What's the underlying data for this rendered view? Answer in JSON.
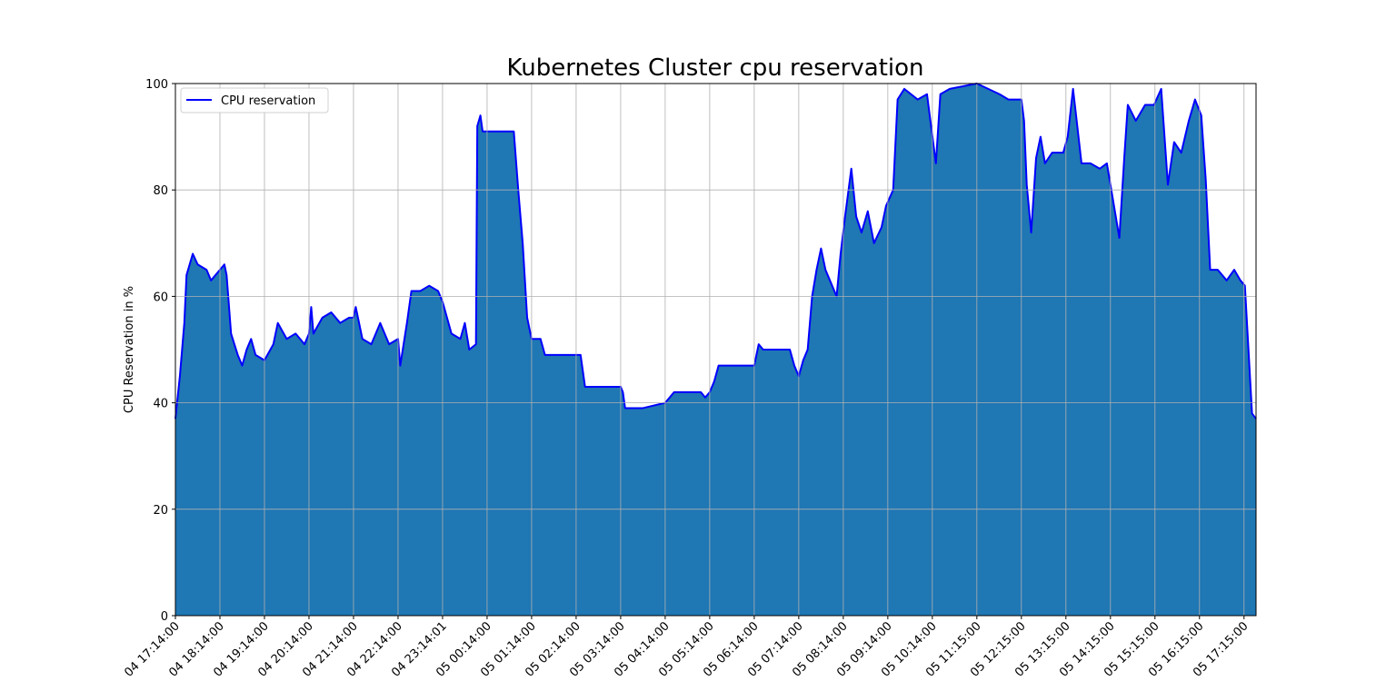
{
  "chart_data": {
    "type": "area",
    "title": "Kubernetes Cluster cpu reservation",
    "ylabel": "CPU Reservation in %",
    "x": [
      0,
      0.1,
      0.2,
      0.25,
      0.39,
      0.5,
      0.7,
      0.8,
      1.0,
      1.1,
      1.15,
      1.25,
      1.4,
      1.5,
      1.6,
      1.7,
      1.8,
      2.0,
      2.2,
      2.3,
      2.5,
      2.7,
      2.9,
      3.0,
      3.05,
      3.1,
      3.3,
      3.5,
      3.7,
      3.9,
      4.0,
      4.05,
      4.2,
      4.4,
      4.6,
      4.8,
      5.0,
      5.05,
      5.2,
      5.3,
      5.5,
      5.7,
      5.9,
      6.0,
      6.2,
      6.4,
      6.5,
      6.6,
      6.75,
      6.78,
      6.85,
      6.9,
      7.0,
      7.6,
      7.7,
      7.8,
      7.9,
      8.0,
      8.2,
      8.3,
      9.1,
      9.15,
      9.2,
      10.0,
      10.05,
      10.1,
      10.5,
      11.0,
      11.2,
      11.8,
      11.9,
      12.0,
      12.1,
      12.2,
      13.0,
      13.05,
      13.1,
      13.2,
      13.8,
      13.9,
      14.0,
      14.1,
      14.2,
      14.25,
      14.3,
      14.4,
      14.5,
      14.6,
      14.7,
      14.85,
      14.94,
      15.04,
      15.18,
      15.29,
      15.41,
      15.55,
      15.69,
      15.86,
      15.96,
      16.12,
      16.22,
      16.37,
      16.67,
      16.88,
      17.08,
      17.18,
      17.39,
      18.0,
      18.51,
      18.71,
      19.0,
      19.06,
      19.12,
      19.22,
      19.33,
      19.43,
      19.53,
      19.69,
      19.94,
      20.04,
      20.16,
      20.31,
      20.35,
      20.55,
      20.76,
      20.92,
      21.06,
      21.2,
      21.31,
      21.39,
      21.57,
      21.78,
      21.98,
      22.14,
      22.29,
      22.43,
      22.59,
      22.76,
      22.9,
      23.04,
      23.14,
      23.24,
      23.41,
      23.61,
      23.78,
      23.92,
      24.02,
      24.18,
      24.27
    ],
    "series": [
      {
        "name": "CPU reservation",
        "color": "#0000ff",
        "fill": "#1f77b4",
        "values": [
          37,
          45,
          55,
          64,
          68,
          66,
          65,
          63,
          65,
          66,
          64,
          53,
          49,
          47,
          50,
          52,
          49,
          48,
          51,
          55,
          52,
          53,
          51,
          53,
          58,
          53,
          56,
          57,
          55,
          56,
          56,
          58,
          52,
          51,
          55,
          51,
          52,
          47,
          55,
          61,
          61,
          62,
          61,
          59,
          53,
          52,
          55,
          50,
          51,
          92,
          94,
          91,
          91,
          91,
          80,
          70,
          56,
          52,
          52,
          49,
          49,
          46,
          43,
          43,
          42,
          39,
          39,
          40,
          42,
          42,
          41,
          42,
          44,
          47,
          47,
          49,
          51,
          50,
          50,
          47,
          45,
          48,
          50,
          55,
          60,
          65,
          69,
          65,
          63,
          60,
          68,
          75,
          84,
          75,
          72,
          76,
          70,
          73,
          77,
          80,
          97,
          99,
          97,
          98,
          85,
          98,
          99,
          100,
          98,
          97,
          97,
          93,
          81,
          72,
          86,
          90,
          85,
          87,
          87,
          90,
          99,
          88,
          85,
          85,
          84,
          85,
          78,
          71,
          86,
          96,
          93,
          96,
          96,
          99,
          81,
          89,
          87,
          93,
          97,
          94,
          82,
          65,
          65,
          63,
          65,
          63,
          62,
          38,
          37
        ]
      }
    ],
    "xlim": [
      0,
      24.27
    ],
    "xticks": [
      {
        "value": 0,
        "label": "04 17:14:00"
      },
      {
        "value": 1,
        "label": "04 18:14:00"
      },
      {
        "value": 2,
        "label": "04 19:14:00"
      },
      {
        "value": 3,
        "label": "04 20:14:00"
      },
      {
        "value": 4,
        "label": "04 21:14:00"
      },
      {
        "value": 5,
        "label": "04 22:14:00"
      },
      {
        "value": 6,
        "label": "04 23:14:01"
      },
      {
        "value": 7,
        "label": "05 00:14:00"
      },
      {
        "value": 8,
        "label": "05 01:14:00"
      },
      {
        "value": 9,
        "label": "05 02:14:00"
      },
      {
        "value": 10,
        "label": "05 03:14:00"
      },
      {
        "value": 11,
        "label": "05 04:14:00"
      },
      {
        "value": 12,
        "label": "05 05:14:00"
      },
      {
        "value": 13,
        "label": "05 06:14:00"
      },
      {
        "value": 14,
        "label": "05 07:14:00"
      },
      {
        "value": 15,
        "label": "05 08:14:00"
      },
      {
        "value": 16,
        "label": "05 09:14:00"
      },
      {
        "value": 17,
        "label": "05 10:14:00"
      },
      {
        "value": 18,
        "label": "05 11:15:00"
      },
      {
        "value": 19,
        "label": "05 12:15:00"
      },
      {
        "value": 20,
        "label": "05 13:15:00"
      },
      {
        "value": 21,
        "label": "05 14:15:00"
      },
      {
        "value": 22,
        "label": "05 15:15:00"
      },
      {
        "value": 23,
        "label": "05 16:15:00"
      },
      {
        "value": 24,
        "label": "05 17:15:00"
      }
    ],
    "ylim": [
      0,
      100
    ],
    "yticks": [
      0,
      20,
      40,
      60,
      80,
      100
    ],
    "grid": true,
    "legend": "upper left"
  }
}
